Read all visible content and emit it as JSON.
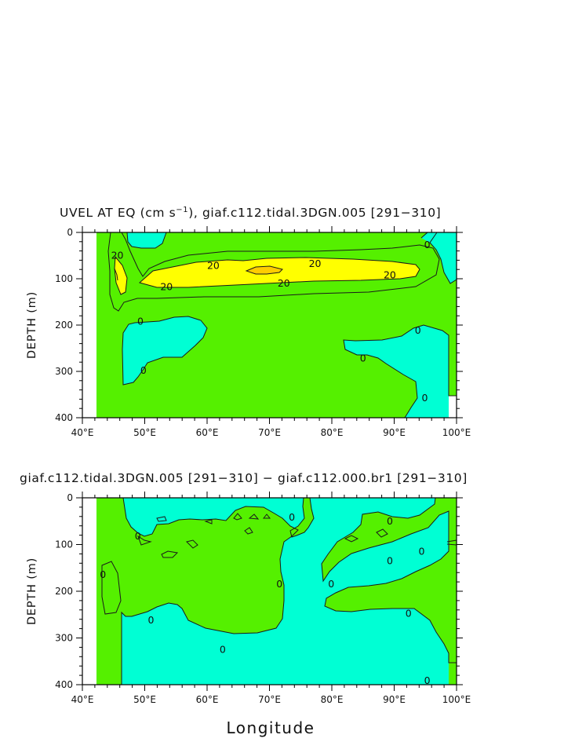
{
  "colors": {
    "band_0_to_20": "#55f000",
    "band_neg": "#00ffd4",
    "band_20_to_40": "#ffff00",
    "band_40_plus": "#ffcd00",
    "missing": "#ffffff"
  },
  "chart_data": [
    {
      "type": "contour",
      "title": "UVEL AT EQ (cm s⁻¹), giaf.c112.tidal.3DGN.005 [291−310]",
      "title_parts": [
        "UVEL AT EQ (cm s",
        "−1",
        "), giaf.c112.tidal.3DGN.005 [291−310]"
      ],
      "xlabel": "",
      "ylabel": "DEPTH (m)",
      "xlim": [
        40,
        100
      ],
      "ylim": [
        400,
        0
      ],
      "x_tick_labels": [
        "40°E",
        "50°E",
        "60°E",
        "70°E",
        "80°E",
        "90°E",
        "100°E"
      ],
      "y_tick_labels": [
        "0",
        "100",
        "200",
        "300",
        "400"
      ],
      "contour_levels": [
        0,
        20,
        40
      ],
      "contour_labels": [
        {
          "text": "20",
          "x": 45.6,
          "y": 50
        },
        {
          "text": "20",
          "x": 61.0,
          "y": 72
        },
        {
          "text": "20",
          "x": 77.3,
          "y": 68
        },
        {
          "text": "20",
          "x": 53.5,
          "y": 118
        },
        {
          "text": "20",
          "x": 72.3,
          "y": 110
        },
        {
          "text": "20",
          "x": 89.3,
          "y": 92
        },
        {
          "text": "0",
          "x": 49.3,
          "y": 192
        },
        {
          "text": "0",
          "x": 49.8,
          "y": 298
        },
        {
          "text": "0",
          "x": 93.8,
          "y": 212
        },
        {
          "text": "0",
          "x": 85.0,
          "y": 272
        },
        {
          "text": "0",
          "x": 95.3,
          "y": 27
        },
        {
          "text": "0",
          "x": 94.9,
          "y": 358
        }
      ]
    },
    {
      "type": "contour",
      "title": "giaf.c112.tidal.3DGN.005 [291−310] − giaf.c112.000.br1 [291−310]",
      "title_parts": [
        "giaf.c112.tidal.3DGN.005 [291−310] − giaf.c112.000.br1 [291−310]"
      ],
      "xlabel": "Longitude",
      "ylabel": "DEPTH (m)",
      "xlim": [
        40,
        100
      ],
      "ylim": [
        400,
        0
      ],
      "x_tick_labels": [
        "40°E",
        "50°E",
        "60°E",
        "70°E",
        "80°E",
        "90°E",
        "100°E"
      ],
      "y_tick_labels": [
        "0",
        "100",
        "200",
        "300",
        "400"
      ],
      "contour_levels": [
        0
      ],
      "contour_labels": [
        {
          "text": "0",
          "x": 43.3,
          "y": 165
        },
        {
          "text": "0",
          "x": 48.9,
          "y": 82
        },
        {
          "text": "0",
          "x": 51.0,
          "y": 262
        },
        {
          "text": "0",
          "x": 62.5,
          "y": 325
        },
        {
          "text": "0",
          "x": 71.6,
          "y": 185
        },
        {
          "text": "0",
          "x": 73.6,
          "y": 42
        },
        {
          "text": "0",
          "x": 79.9,
          "y": 185
        },
        {
          "text": "0",
          "x": 89.3,
          "y": 50
        },
        {
          "text": "0",
          "x": 89.3,
          "y": 135
        },
        {
          "text": "0",
          "x": 94.4,
          "y": 115
        },
        {
          "text": "0",
          "x": 92.3,
          "y": 248
        },
        {
          "text": "0",
          "x": 95.3,
          "y": 392
        }
      ]
    }
  ]
}
